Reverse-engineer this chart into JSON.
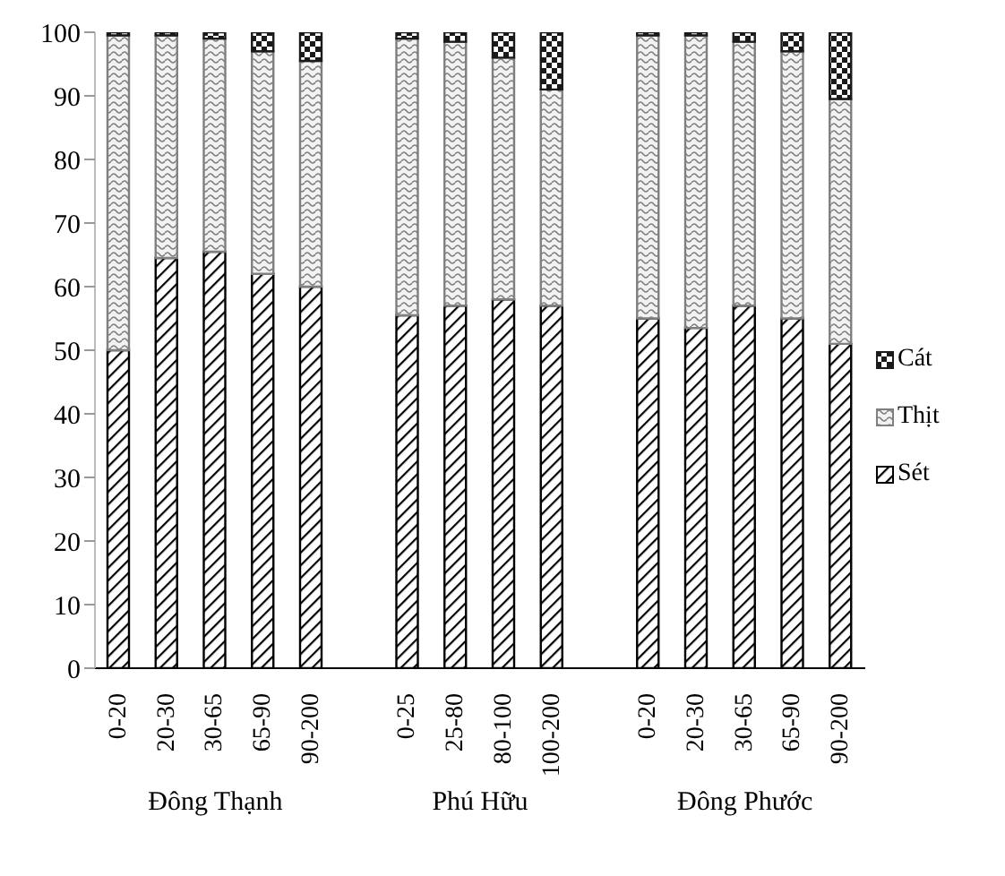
{
  "chart_data": {
    "type": "bar",
    "stacked": true,
    "categories": [
      "0-20",
      "20-30",
      "30-65",
      "65-90",
      "90-200",
      null,
      "0-25",
      "25-80",
      "80-100",
      "100-200",
      null,
      "0-20",
      "20-30",
      "30-65",
      "65-90",
      "90-200"
    ],
    "series": [
      {
        "name": "Sét",
        "color": "#000000",
        "values": [
          50,
          64.5,
          65.5,
          62,
          60,
          null,
          55.5,
          57,
          58,
          57,
          null,
          55,
          53.5,
          57,
          55,
          51
        ]
      },
      {
        "name": "Thịt",
        "color": "#7f7f7f",
        "values": [
          49.5,
          35,
          33.5,
          35,
          35.5,
          null,
          43.5,
          41.5,
          38,
          34,
          null,
          44.5,
          46,
          41.5,
          42,
          38.5
        ]
      },
      {
        "name": "Cát",
        "color": "#1a1a1a",
        "values": [
          0.5,
          0.5,
          1,
          3,
          4.5,
          null,
          1,
          1.5,
          4,
          9,
          null,
          0.5,
          0.5,
          1.5,
          3,
          10.5
        ]
      }
    ],
    "ylim": [
      0,
      100
    ],
    "yticks": [
      0,
      10,
      20,
      30,
      40,
      50,
      60,
      70,
      80,
      90,
      100
    ],
    "legend": "right",
    "annotations": [
      "Đông Thạnh",
      "Phú Hữu",
      "Đông Phước"
    ]
  }
}
